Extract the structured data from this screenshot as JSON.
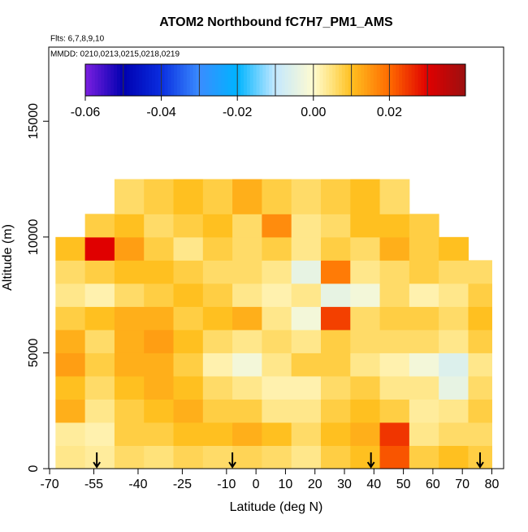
{
  "chart_data": {
    "type": "heatmap",
    "title": "ATOM2 Northbound fC7H7_PM1_AMS",
    "subtitle": "Flts: 6,7,8,9,10",
    "annotation": "MMDD: 0210,0213,0215,0218,0219",
    "xlabel": "Latitude (deg N)",
    "ylabel": "Altitude (m)",
    "xlim": [
      -70.3,
      84
    ],
    "ylim": [
      0,
      18200
    ],
    "xticks": [
      -70,
      -55,
      -40,
      -25,
      -10,
      0,
      10,
      20,
      30,
      40,
      50,
      60,
      70,
      80
    ],
    "yticks": [
      0,
      5000,
      10000,
      15000
    ],
    "x_edges": [
      -68,
      -58,
      -48,
      -38,
      -28,
      -18,
      -8,
      2,
      12,
      22,
      32,
      42,
      52,
      62,
      72,
      80
    ],
    "y_edges": [
      0,
      1000,
      2000,
      3000,
      4000,
      5000,
      6000,
      7000,
      8000,
      9000,
      10000,
      11000,
      12500
    ],
    "z": [
      [
        0.004,
        0.003,
        0.006,
        0.005,
        0.007,
        0.006,
        0.007,
        0.006,
        0.004,
        0.008,
        0.01,
        0.022,
        0.008,
        0.01,
        0.008
      ],
      [
        0.003,
        0.002,
        0.008,
        0.008,
        0.01,
        0.01,
        0.012,
        0.01,
        0.006,
        0.01,
        0.012,
        0.025,
        0.004,
        0.006,
        0.006
      ],
      [
        0.012,
        0.004,
        0.008,
        0.01,
        0.012,
        0.008,
        0.008,
        0.004,
        0.004,
        0.008,
        0.01,
        0.008,
        0.003,
        0.004,
        0.008
      ],
      [
        0.01,
        0.006,
        0.01,
        0.012,
        0.01,
        0.006,
        0.004,
        0.002,
        0.002,
        0.006,
        0.008,
        0.004,
        0.004,
        -0.004,
        0.006
      ],
      [
        0.014,
        0.008,
        0.012,
        0.012,
        0.008,
        0.002,
        -0.002,
        0.004,
        0.008,
        0.008,
        0.004,
        0.002,
        -0.002,
        -0.006,
        0.004
      ],
      [
        0.012,
        0.006,
        0.012,
        0.014,
        0.01,
        0.006,
        0.004,
        0.006,
        0.004,
        0.008,
        0.006,
        0.006,
        0.006,
        0.004,
        0.008
      ],
      [
        0.008,
        0.01,
        0.012,
        0.012,
        0.008,
        0.01,
        0.012,
        0.004,
        -0.002,
        0.024,
        0.006,
        0.008,
        0.008,
        0.006,
        0.01
      ],
      [
        0.004,
        0.002,
        0.006,
        0.008,
        0.01,
        0.008,
        0.004,
        0.002,
        0.004,
        -0.004,
        -0.002,
        0.006,
        0.002,
        0.004,
        0.008
      ],
      [
        0.006,
        0.008,
        0.01,
        0.01,
        0.008,
        0.006,
        0.006,
        0.004,
        -0.004,
        0.018,
        0.004,
        0.006,
        0.008,
        0.006,
        0.006
      ],
      [
        0.01,
        0.03,
        0.014,
        0.008,
        0.004,
        0.008,
        0.006,
        0.008,
        0.004,
        0.008,
        0.006,
        0.012,
        0.008,
        0.01,
        null
      ],
      [
        null,
        0.008,
        0.01,
        0.006,
        0.008,
        0.01,
        0.006,
        0.016,
        0.004,
        0.006,
        0.01,
        0.01,
        0.008,
        null,
        null
      ],
      [
        null,
        null,
        0.006,
        0.008,
        0.01,
        0.008,
        0.012,
        0.008,
        0.006,
        0.008,
        0.01,
        0.006,
        null,
        null,
        null
      ]
    ],
    "arrows_x": [
      -54,
      -8,
      39,
      76
    ],
    "colorscale": [
      [
        -0.06,
        "#7b1fe0"
      ],
      [
        -0.05,
        "#0000b0"
      ],
      [
        -0.04,
        "#0a2ee0"
      ],
      [
        -0.03,
        "#3a8cff"
      ],
      [
        -0.02,
        "#00b4ff"
      ],
      [
        -0.01,
        "#c4e8ff"
      ],
      [
        0,
        "#fffbd0"
      ],
      [
        0.005,
        "#ffe27a"
      ],
      [
        0.01,
        "#ffc020"
      ],
      [
        0.02,
        "#ff6a00"
      ],
      [
        0.03,
        "#e00000"
      ],
      [
        0.04,
        "#9c1010"
      ]
    ],
    "colorbar_lim": [
      -0.06,
      0.04
    ],
    "colorbar_breaks": [
      -0.05,
      -0.04,
      -0.03,
      -0.02,
      -0.01,
      0,
      0.01,
      0.02,
      0.03
    ],
    "colorbar_ticks": [
      -0.06,
      -0.04,
      -0.02,
      {
        "value": 0,
        "label": "0.00"
      },
      0.02
    ]
  }
}
